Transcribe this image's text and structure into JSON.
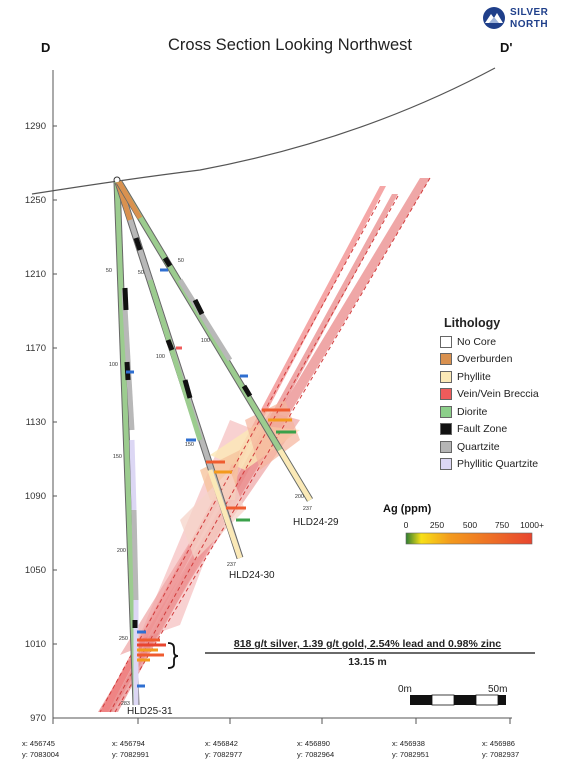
{
  "title": "Cross Section Looking Northwest",
  "section_start_label": "D",
  "section_end_label": "D'",
  "logo": {
    "name": "SILVER NORTH",
    "icon": "mountain-logo-icon"
  },
  "elevation_axis": {
    "ticks": [
      "1290",
      "1250",
      "1210",
      "1170",
      "1130",
      "1090",
      "1050",
      "1010",
      "970"
    ],
    "range": [
      970,
      1310
    ]
  },
  "coordinates": [
    {
      "x": "x: 456745",
      "y": "y: 7083004"
    },
    {
      "x": "x: 456794",
      "y": "y: 7082991"
    },
    {
      "x": "x: 456842",
      "y": "y: 7082977"
    },
    {
      "x": "x: 456890",
      "y": "y: 7082964"
    },
    {
      "x": "x: 456938",
      "y": "y: 7082951"
    },
    {
      "x": "x: 456986",
      "y": "y: 7082937"
    }
  ],
  "lithology": {
    "title": "Lithology",
    "items": [
      {
        "label": "No Core",
        "color": "#ffffff"
      },
      {
        "label": "Overburden",
        "color": "#d9914f"
      },
      {
        "label": "Phyllite",
        "color": "#fbe9b7"
      },
      {
        "label": "Vein/Vein Breccia",
        "color": "#ef5b5b"
      },
      {
        "label": "Diorite",
        "color": "#8ccf8a"
      },
      {
        "label": "Fault Zone",
        "color": "#111111"
      },
      {
        "label": "Quartzite",
        "color": "#b5b5b5"
      },
      {
        "label": "Phyllitic Quartzite",
        "color": "#dcd7f4"
      }
    ]
  },
  "ag_scale": {
    "title": "Ag (ppm)",
    "ticks": [
      "0",
      "250",
      "500",
      "750",
      "1000+"
    ]
  },
  "holes": [
    {
      "name": "HLD24-29",
      "depth_marks": [
        "50",
        "100",
        "150",
        "200",
        "237"
      ]
    },
    {
      "name": "HLD24-30",
      "depth_marks": [
        "50",
        "100",
        "150",
        "200",
        "237"
      ]
    },
    {
      "name": "HLD25-31",
      "depth_marks": [
        "50",
        "100",
        "150",
        "200",
        "250",
        "283"
      ]
    }
  ],
  "highlight": {
    "line1": "818 g/t silver, 1.39 g/t gold, 2.54% lead and 0.98% zinc",
    "line2": "13.15 m"
  },
  "scale_bar": {
    "start": "0m",
    "end": "50m"
  }
}
